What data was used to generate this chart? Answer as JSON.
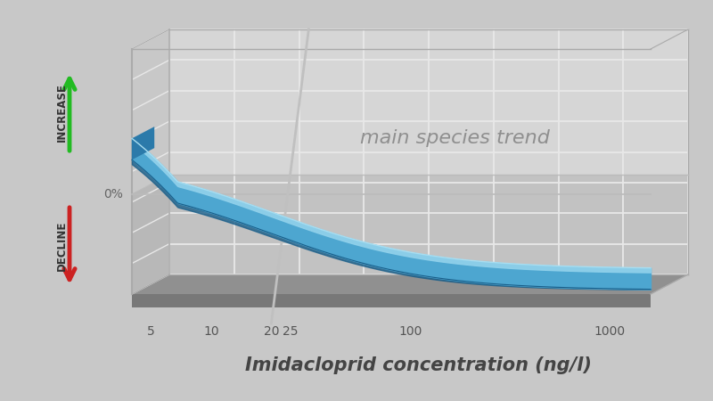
{
  "xlabel": "Imidacloprid concentration (ng/l)",
  "annotation": "main species trend",
  "x_ticks": [
    5,
    10,
    20,
    25,
    100,
    1000
  ],
  "x_tick_labels": [
    "5",
    "10",
    "20",
    "25",
    "100",
    "1000"
  ],
  "background_color": "#c8c8c8",
  "back_wall_upper_color": "#d8d8d8",
  "back_wall_lower_color": "#c0c0c0",
  "left_wall_color": "#c4c4c4",
  "floor_color": "#909090",
  "floor_shelf_color": "#787878",
  "grid_color": "#e8e8e8",
  "band_main_color": "#4da6d0",
  "band_highlight_color": "#8fd0ea",
  "band_shadow_color": "#2b7aaa",
  "band_edge_dark": "#1a5f8a",
  "vertical_line_color": "#c0c0c0",
  "increase_color": "#22bb22",
  "decline_color": "#cc2222",
  "annotation_color": "#888888",
  "zero_label_color": "#666666",
  "tick_color": "#555555",
  "xlabel_color": "#444444",
  "annotation_fontsize": 16,
  "xlabel_fontsize": 15,
  "tick_fontsize": 10,
  "ylabel_increase": "INCREASE",
  "ylabel_decline": "DECLINE"
}
